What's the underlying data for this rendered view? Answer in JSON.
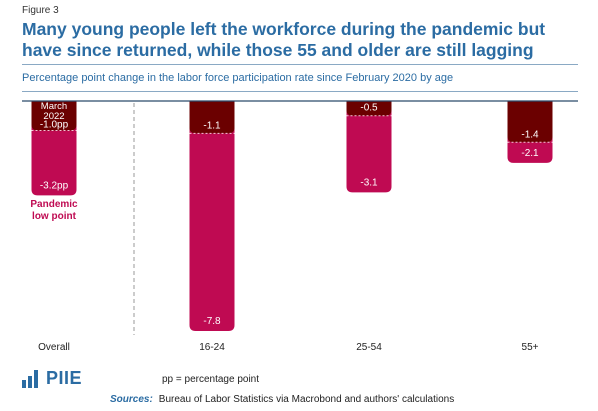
{
  "figure_label": "Figure 3",
  "title": "Many young people left the workforce during the pandemic but have since returned, while those 55 and older are still lagging",
  "subtitle": "Percentage point change in the labor force participation rate since February 2020 by age",
  "chart_data": {
    "type": "bar",
    "categories": [
      "Overall",
      "16-24",
      "25-54",
      "55+"
    ],
    "series": [
      {
        "name": "Pandemic low point",
        "values": [
          -3.2,
          -7.8,
          -3.1,
          -2.1
        ]
      },
      {
        "name": "March 2022",
        "values": [
          -1.0,
          -1.1,
          -0.5,
          -1.4
        ]
      }
    ],
    "value_labels": {
      "low_point": [
        "-3.2pp",
        "-7.8",
        "-3.1",
        "-2.1"
      ],
      "march_2022": [
        "-1.0pp",
        "-1.1",
        "-0.5",
        "-1.4"
      ]
    },
    "annotations": {
      "march_label": [
        "March",
        "2022"
      ],
      "low_label": [
        "Pandemic",
        "low point"
      ]
    },
    "ylim": [
      -7.8,
      0
    ],
    "grid": false,
    "colors": {
      "low_point": "#bf0a52",
      "march_2022": "#6b0000",
      "title": "#2b6ca3"
    }
  },
  "footer": {
    "logo_text": "PIIE",
    "note": "pp = percentage point",
    "sources_label": "Sources:",
    "sources_text": "Bureau of Labor Statistics via Macrobond and authors' calculations"
  }
}
